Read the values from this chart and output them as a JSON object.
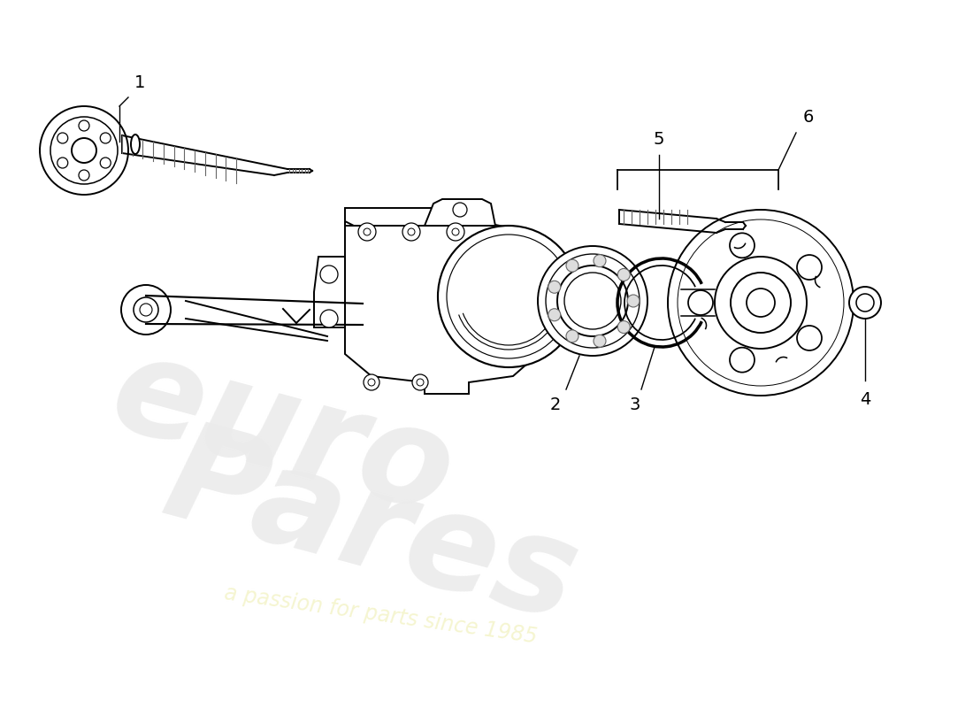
{
  "background_color": "#ffffff",
  "line_color": "#000000",
  "watermark_color1": "#ebebeb",
  "watermark_color2": "#f5f5d0",
  "part_labels": [
    "1",
    "2",
    "3",
    "4",
    "5",
    "6"
  ]
}
